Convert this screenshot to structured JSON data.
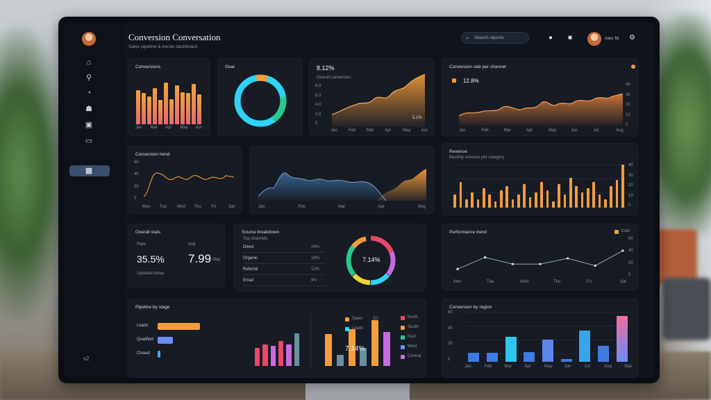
{
  "app": {
    "title": "Conversion Conversation",
    "subtitle": "Sales pipeline & trends dashboard",
    "search_placeholder": "Search reports",
    "user_name": "Alex M."
  },
  "sidebar": {
    "items": [
      {
        "icon": "home-icon"
      },
      {
        "icon": "analytics-icon"
      },
      {
        "icon": "reports-icon"
      },
      {
        "icon": "users-icon"
      },
      {
        "icon": "calendar-icon"
      },
      {
        "icon": "messages-icon"
      },
      {
        "icon": "dashboard-icon",
        "active": true
      }
    ],
    "footer": "v2"
  },
  "cards": {
    "bars_orange": {
      "title": "Conversions",
      "labels": [
        "Jan",
        "Mar",
        "Apr",
        "May",
        "Jun"
      ],
      "values": [
        0.68,
        0.62,
        0.55,
        0.72,
        0.48,
        0.83,
        0.5,
        0.78,
        0.64,
        0.62,
        0.8,
        0.6
      ],
      "color_top": "#f5a23a",
      "color_bottom": "#e86a6f"
    },
    "donut": {
      "title": "Goal",
      "color_a": "#2ed3f5",
      "color_b": "#26c98a",
      "color_c": "#f59c3b"
    },
    "area_orange": {
      "value": "8.12%",
      "sub": "Overall conversion",
      "y_ticks": [
        "8.0",
        "6.0",
        "4.0",
        "2.0",
        "0"
      ],
      "x_ticks": [
        "Jan",
        "Feb",
        "Mar",
        "Apr",
        "May",
        "Jun"
      ],
      "note": "5.1%"
    },
    "area_wide": {
      "title": "Conversion rate per channel",
      "value": "12.8%",
      "y_ticks": [
        "40",
        "30",
        "20",
        "10",
        "0"
      ],
      "x_ticks": [
        "Jan",
        "Feb",
        "Mar",
        "Apr",
        "May",
        "Jun",
        "Jul",
        "Aug"
      ]
    },
    "line_small": {
      "title": "Conversion trend",
      "y_ticks": [
        "60",
        "40",
        "20",
        "0"
      ],
      "x_ticks": [
        "Mon",
        "Tue",
        "Wed",
        "Thu",
        "Fri",
        "Sat"
      ]
    },
    "area_blue": {
      "x_ticks": [
        "Jan",
        "Feb",
        "Mar",
        "Apr",
        "May"
      ]
    },
    "bars_many": {
      "title": "Revenue",
      "subtitle": "Monthly revenue per category",
      "y_ticks": [
        "40",
        "30",
        "20",
        "10",
        "0"
      ],
      "values": [
        0.3,
        0.6,
        0.2,
        0.35,
        0.2,
        0.45,
        0.3,
        0.15,
        0.4,
        0.5,
        0.2,
        0.3,
        0.55,
        0.25,
        0.35,
        0.6,
        0.4,
        0.15,
        0.55,
        0.3,
        0.7,
        0.5,
        0.35,
        0.45,
        0.6,
        0.3,
        0.2,
        0.5,
        0.65,
        1.0
      ]
    },
    "stats": {
      "title": "Overall stats",
      "left_label": "Rate",
      "left_value": "35.5%",
      "right_label": "Avg",
      "right_value": "7.99",
      "right_unit": "/day",
      "footer": "Updated today"
    },
    "table_donut": {
      "title": "Source breakdown",
      "subtitle": "Top channels",
      "rows": [
        {
          "label": "Direct",
          "value": "24%"
        },
        {
          "label": "Organic",
          "value": "18%"
        },
        {
          "label": "Referral",
          "value": "12%"
        },
        {
          "label": "Email",
          "value": "9%"
        }
      ],
      "center_value": "7.14%",
      "colors": [
        "#e9476b",
        "#f59c3b",
        "#f2d33a",
        "#26c98a",
        "#2ed3f5",
        "#c96be0"
      ]
    },
    "line_right": {
      "title": "Performance trend",
      "legend": "Goal",
      "y_ticks": [
        "60",
        "40",
        "20",
        "0"
      ],
      "x_ticks": [
        "Mon",
        "Tue",
        "Wed",
        "Thu",
        "Fri",
        "Sat"
      ],
      "values": [
        0.2,
        0.55,
        0.35,
        0.35,
        0.52,
        0.3,
        0.75
      ]
    },
    "hbars": {
      "title": "Pipeline by stage",
      "labels": [
        "Leads",
        "Qualified",
        "Closed"
      ],
      "values": [
        0.85,
        0.3,
        0.05
      ],
      "colors": [
        "#f59c3b",
        "#6b8cf5",
        "#4aa8f0"
      ]
    },
    "small_bars": {
      "values": [
        0.5,
        0.6,
        0.55,
        0.7,
        0.6,
        0.9
      ],
      "colors": [
        "#e9476b",
        "#e9476b",
        "#c96be0",
        "#e9476b",
        "#c96be0",
        "#6a8fa0"
      ]
    },
    "mid_bars": {
      "values": [
        0.7,
        0.25,
        0.8,
        0.4,
        1.0,
        0.75
      ],
      "colors": [
        "#f59c3b",
        "#6a8fa0",
        "#f59c3b",
        "#6a8fa0",
        "#f59c3b",
        "#c96be0"
      ]
    },
    "legend_panel": {
      "items": [
        {
          "label": "Sales",
          "value": "Q1",
          "color": "#f59c3b"
        },
        {
          "label": "Leads",
          "value": "",
          "color": "#2ed3f5"
        }
      ],
      "value": "7.14%",
      "right_items": [
        {
          "label": "North",
          "color": "#e9476b"
        },
        {
          "label": "South",
          "color": "#f59c3b"
        },
        {
          "label": "East",
          "color": "#26c98a"
        },
        {
          "label": "West",
          "color": "#6b8cf5"
        },
        {
          "label": "Central",
          "color": "#c96be0"
        }
      ]
    },
    "blue_bars": {
      "title": "Conversion by region",
      "y_ticks": [
        "60",
        "40",
        "20",
        "0"
      ],
      "x_ticks": [
        "Jan",
        "Feb",
        "Mar",
        "Apr",
        "May",
        "Jun",
        "Jul",
        "Aug",
        "Sep"
      ],
      "values": [
        0.18,
        0.18,
        0.5,
        0.2,
        0.45,
        0.06,
        0.62,
        0.32,
        0.92
      ]
    }
  }
}
